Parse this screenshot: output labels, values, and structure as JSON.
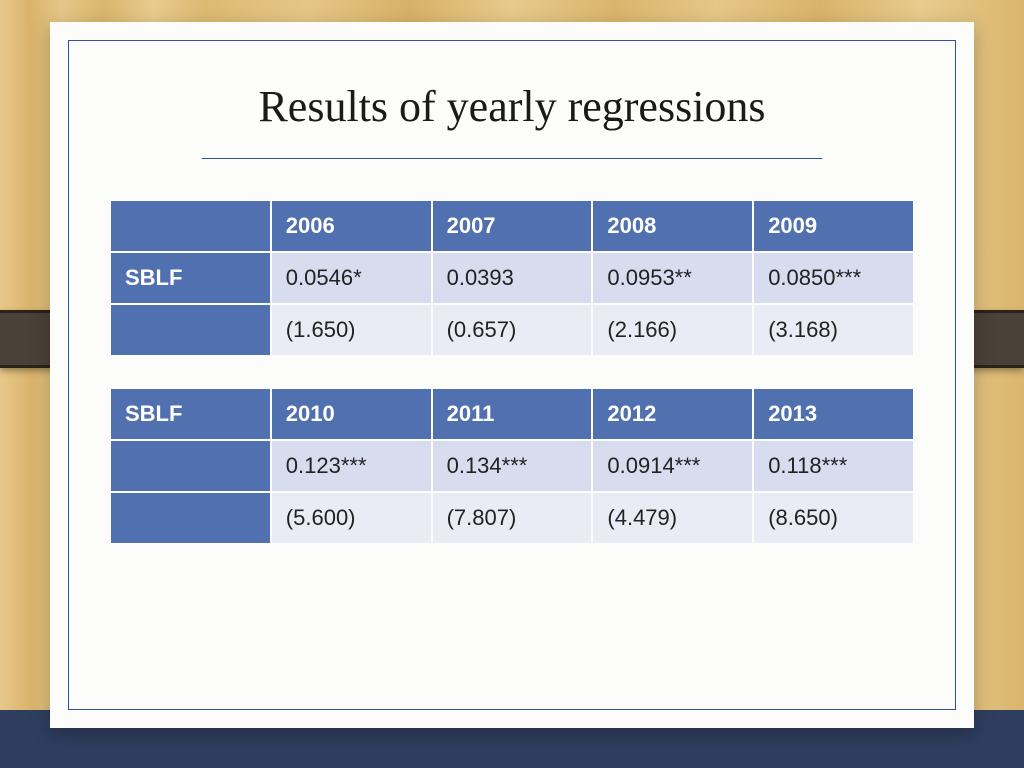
{
  "title": "Results of yearly regressions",
  "table": {
    "type": "table",
    "header_bg": "#5170b0",
    "header_fg": "#ffffff",
    "row_light_bg": "#d7ddef",
    "row_med_bg": "#e9ecf5",
    "text_color": "#222222",
    "fontsize": 22,
    "header_fontweight": 700,
    "block1": {
      "row_label": "SBLF",
      "years": [
        "2006",
        "2007",
        "2008",
        "2009"
      ],
      "coefs": [
        "0.0546*",
        "0.0393",
        "0.0953**",
        "0.0850***"
      ],
      "tstats": [
        "(1.650)",
        "(0.657)",
        "(2.166)",
        "(3.168)"
      ]
    },
    "block2": {
      "row_label": "SBLF",
      "years": [
        "2010",
        "2011",
        "2012",
        "2013"
      ],
      "coefs": [
        "0.123***",
        "0.134***",
        "0.0914***",
        "0.118***"
      ],
      "tstats": [
        "(5.600)",
        "(7.807)",
        "(4.479)",
        "(8.650)"
      ]
    }
  },
  "style": {
    "page_bg": "#fcfcfa",
    "border_color": "#2f4e9b",
    "title_fontsize": 44,
    "bottom_bar_color": "#2f3e5f",
    "clip_color": "#4a4138"
  }
}
